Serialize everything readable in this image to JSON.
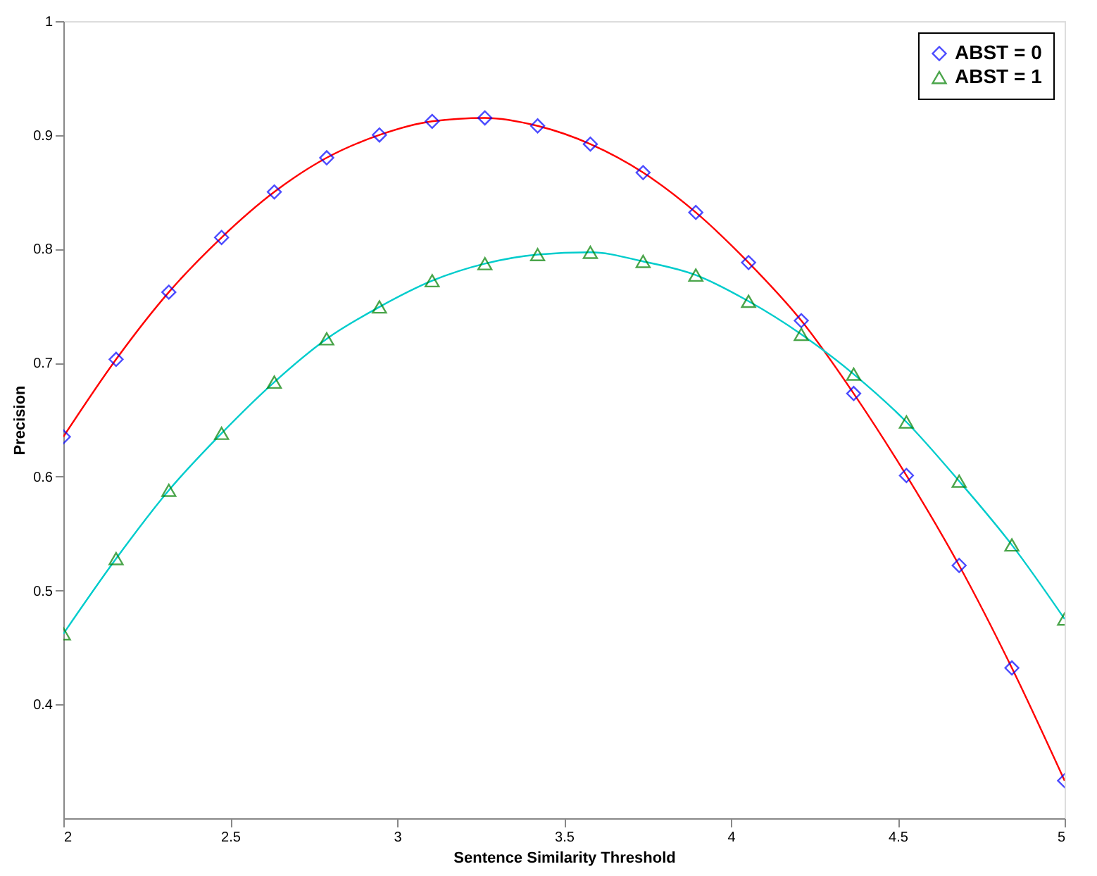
{
  "chart_data": {
    "type": "scatter",
    "xlabel": "Sentence Similarity Threshold",
    "ylabel": "Precision",
    "xlim": [
      2,
      5
    ],
    "xticks": [
      2,
      2.5,
      3,
      3.5,
      4,
      4.5,
      5
    ],
    "ylim": [
      0.3,
      1
    ],
    "yticks": [
      0.4,
      0.5,
      0.6,
      0.7,
      0.8,
      0.9,
      1
    ],
    "grid": false,
    "legend": "top right",
    "x": [
      2.0,
      2.158,
      2.316,
      2.474,
      2.632,
      2.789,
      2.947,
      3.105,
      3.263,
      3.421,
      3.579,
      3.737,
      3.895,
      4.053,
      4.211,
      4.368,
      4.526,
      4.684,
      4.842,
      5.0
    ],
    "series": [
      {
        "type": "line",
        "color": "#ff0000",
        "marker": "none",
        "line_style": "solid",
        "values": [
          0.635,
          0.703,
          0.762,
          0.81,
          0.85,
          0.88,
          0.9,
          0.912,
          0.915,
          0.908,
          0.892,
          0.867,
          0.832,
          0.788,
          0.737,
          0.673,
          0.601,
          0.522,
          0.432,
          0.333
        ]
      },
      {
        "type": "line",
        "color": "#00cccc",
        "marker": "none",
        "line_style": "solid",
        "values": [
          0.462,
          0.528,
          0.588,
          0.638,
          0.683,
          0.721,
          0.749,
          0.772,
          0.787,
          0.795,
          0.797,
          0.789,
          0.777,
          0.754,
          0.725,
          0.69,
          0.648,
          0.596,
          0.54,
          0.475
        ]
      },
      {
        "type": "scatter",
        "name": "ABST = 0",
        "color": "#0000ff",
        "marker": "diamond",
        "values": [
          0.635,
          0.703,
          0.762,
          0.81,
          0.85,
          0.88,
          0.9,
          0.912,
          0.915,
          0.908,
          0.892,
          0.867,
          0.832,
          0.788,
          0.737,
          0.673,
          0.601,
          0.522,
          0.432,
          0.333
        ]
      },
      {
        "type": "scatter",
        "name": "ABST = 1",
        "color": "#008000",
        "marker": "triangle",
        "values": [
          0.462,
          0.528,
          0.588,
          0.638,
          0.683,
          0.721,
          0.749,
          0.772,
          0.787,
          0.795,
          0.797,
          0.789,
          0.777,
          0.754,
          0.725,
          0.69,
          0.648,
          0.596,
          0.54,
          0.475
        ]
      }
    ]
  }
}
